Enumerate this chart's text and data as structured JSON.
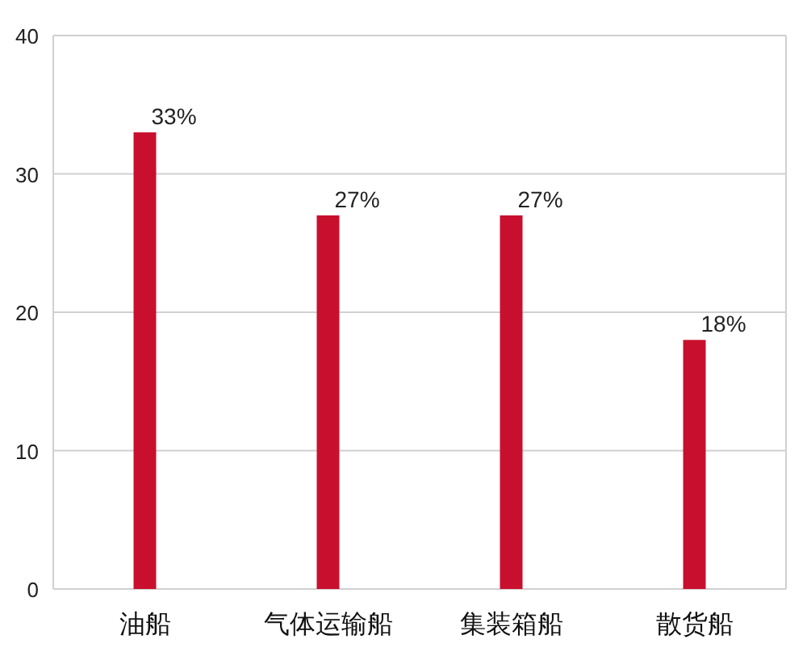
{
  "chart_data": {
    "type": "bar",
    "categories": [
      "油船",
      "气体运输船",
      "集装箱船",
      "散货船"
    ],
    "values": [
      33,
      27,
      27,
      18
    ],
    "value_labels": [
      "33%",
      "27%",
      "27%",
      "18%"
    ],
    "color": "#c8102e",
    "ylim": [
      0,
      40
    ],
    "yticks": [
      0,
      10,
      20,
      30,
      40
    ],
    "grid": "y"
  }
}
